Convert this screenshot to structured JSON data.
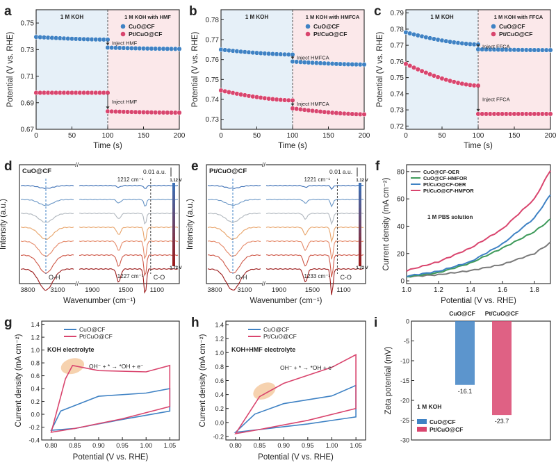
{
  "colors": {
    "blue": "#3f82c4",
    "pink": "#d9456e",
    "green": "#3e9a5a",
    "gray": "#7a7a7a",
    "bgBlue": "#e6f0f8",
    "bgPink": "#fbe8ea",
    "ftirBlueTop": "#3c6fb5",
    "ftirRedBottom": "#9c1c1c"
  },
  "panels": {
    "a": {
      "letter": "a",
      "ylabel": "Potential (V vs. RHE)",
      "xlabel": "Time (s)",
      "region1": "1 M KOH",
      "region2": "1 M KOH with HMF",
      "inject1": "Inject HMF",
      "inject2": "Inject HMF",
      "legend": [
        "CuO@CF",
        "Pt/CuO@CF"
      ]
    },
    "b": {
      "letter": "b",
      "ylabel": "Potential (V vs. RHE)",
      "xlabel": "Time (s)",
      "region1": "1 M KOH",
      "region2": "1 M KOH with HMFCA",
      "inject1": "Inject HMFCA",
      "inject2": "Inject HMFCA",
      "legend": [
        "CuO@CF",
        "Pt/CuO@CF"
      ]
    },
    "c": {
      "letter": "c",
      "ylabel": "Potential (V vs. RHE)",
      "xlabel": "Time (s)",
      "region1": "1 M KOH",
      "region2": "1 M KOH with FFCA",
      "inject1": "Inject FFCA",
      "inject2": "Inject FFCA",
      "legend": [
        "CuO@CF",
        "Pt/CuO@CF"
      ]
    },
    "d": {
      "letter": "d",
      "sample": "CuO@CF",
      "ylabel": "Intensity (a.u.)",
      "xlabel": "Wavenumber (cm⁻¹)",
      "scale": "0.01 a.u.",
      "peak1": "1212 cm⁻¹",
      "peak2": "1227 cm⁻¹",
      "oh": "O-H",
      "co": "C-O",
      "vTop": "1.12 V",
      "vBottom": "1.72 V",
      "xticks": [
        "3800",
        "3100",
        "1900",
        "1500",
        "1100"
      ]
    },
    "e": {
      "letter": "e",
      "sample": "Pt/CuO@CF",
      "ylabel": "Intensity (a.u.)",
      "xlabel": "Wavenumber (cm⁻¹)",
      "scale": "0.01 a.u.",
      "peak1": "1221 cm⁻¹",
      "peak2": "1233 cm⁻¹",
      "oh": "O-H",
      "co": "C-O",
      "vTop": "1.12 V",
      "vBottom": "1.72 V",
      "xticks": [
        "3800",
        "3100",
        "1900",
        "1500",
        "1100"
      ]
    },
    "f": {
      "letter": "f",
      "ylabel": "Current density (mA cm⁻²)",
      "xlabel": "Potential (V vs. RHE)",
      "note": "1 M PBS solution",
      "legend": [
        "CuO@CF-OER",
        "CuO@CF-HMFOR",
        "Pt/CuO@CF-OER",
        "Pt/CuO@CF-HMFOR"
      ]
    },
    "g": {
      "letter": "g",
      "ylabel": "Current density (mA cm⁻²)",
      "xlabel": "Potential (V vs. RHE)",
      "note": "KOH electrolyte",
      "reaction": "OH⁻ + * → *OH + e⁻",
      "legend": [
        "CuO@CF",
        "Pt/CuO@CF"
      ]
    },
    "h": {
      "letter": "h",
      "ylabel": "Current density (mA cm⁻²)",
      "xlabel": "Potential (V vs. RHE)",
      "note": "KOH+HMF electrolyte",
      "reaction": "OH⁻ + * → *OH + e⁻",
      "legend": [
        "CuO@CF",
        "Pt/CuO@CF"
      ]
    },
    "i": {
      "letter": "i",
      "ylabel": "Zeta potential (mV)",
      "note": "1 M KOH",
      "legend": [
        "CuO@CF",
        "Pt/CuO@CF"
      ],
      "topLabels": [
        "CuO@CF",
        "Pt/CuO@CF"
      ]
    }
  },
  "chart_data": [
    {
      "panel": "a",
      "type": "scatter",
      "title": "",
      "xlabel": "Time (s)",
      "ylabel": "Potential (V vs. RHE)",
      "xlim": [
        0,
        200
      ],
      "ylim": [
        0.67,
        0.76
      ],
      "xticks": [
        0,
        50,
        100,
        150,
        200
      ],
      "yticks": [
        0.67,
        0.69,
        0.71,
        0.73,
        0.75
      ],
      "series": [
        {
          "name": "CuO@CF",
          "values": [
            [
              0,
              0.7395
            ],
            [
              100,
              0.7375
            ],
            [
              100,
              0.7315
            ],
            [
              200,
              0.7305
            ]
          ]
        },
        {
          "name": "Pt/CuO@CF",
          "values": [
            [
              0,
              0.6975
            ],
            [
              100,
              0.6975
            ],
            [
              100,
              0.6835
            ],
            [
              200,
              0.6825
            ]
          ]
        }
      ]
    },
    {
      "panel": "b",
      "type": "scatter",
      "title": "",
      "xlabel": "Time (s)",
      "ylabel": "Potential (V vs. RHE)",
      "xlim": [
        0,
        200
      ],
      "ylim": [
        0.725,
        0.785
      ],
      "xticks": [
        0,
        50,
        100,
        150,
        200
      ],
      "yticks": [
        0.73,
        0.74,
        0.75,
        0.76,
        0.77,
        0.78
      ],
      "series": [
        {
          "name": "CuO@CF",
          "values": [
            [
              0,
              0.765
            ],
            [
              100,
              0.7625
            ],
            [
              100,
              0.759
            ],
            [
              200,
              0.7575
            ]
          ]
        },
        {
          "name": "Pt/CuO@CF",
          "values": [
            [
              0,
              0.7445
            ],
            [
              100,
              0.7395
            ],
            [
              100,
              0.7355
            ],
            [
              200,
              0.7325
            ]
          ]
        }
      ]
    },
    {
      "panel": "c",
      "type": "scatter",
      "title": "",
      "xlabel": "Time (s)",
      "ylabel": "Potential (V vs. RHE)",
      "xlim": [
        0,
        200
      ],
      "ylim": [
        0.718,
        0.792
      ],
      "xticks": [
        0,
        50,
        100,
        150,
        200
      ],
      "yticks": [
        0.72,
        0.73,
        0.74,
        0.75,
        0.76,
        0.77,
        0.78,
        0.79
      ],
      "series": [
        {
          "name": "CuO@CF",
          "values": [
            [
              0,
              0.778
            ],
            [
              100,
              0.7705
            ],
            [
              100,
              0.7675
            ],
            [
              200,
              0.767
            ]
          ]
        },
        {
          "name": "Pt/CuO@CF",
          "values": [
            [
              0,
              0.7585
            ],
            [
              100,
              0.745
            ],
            [
              100,
              0.7275
            ],
            [
              200,
              0.7275
            ]
          ]
        }
      ]
    },
    {
      "panel": "d",
      "type": "line",
      "title": "CuO@CF",
      "xlabel": "Wavenumber (cm⁻¹)",
      "ylabel": "Intensity (a.u.)",
      "potentials": [
        "1.12 V",
        "1.72 V"
      ],
      "curves": 7,
      "peaks": [
        3300,
        1212,
        1227
      ]
    },
    {
      "panel": "e",
      "type": "line",
      "title": "Pt/CuO@CF",
      "xlabel": "Wavenumber (cm⁻¹)",
      "ylabel": "Intensity (a.u.)",
      "potentials": [
        "1.12 V",
        "1.72 V"
      ],
      "curves": 7,
      "peaks": [
        3300,
        1221,
        1233
      ]
    },
    {
      "panel": "f",
      "type": "line",
      "title": "",
      "xlabel": "Potential (V vs. RHE)",
      "ylabel": "Current density (mA cm⁻²)",
      "xlim": [
        1.0,
        1.9
      ],
      "ylim": [
        -2,
        85
      ],
      "xticks": [
        1.0,
        1.2,
        1.4,
        1.6,
        1.8
      ],
      "yticks": [
        0,
        20,
        40,
        60,
        80
      ],
      "series": [
        {
          "name": "CuO@CF-OER",
          "values": [
            [
              1.0,
              3
            ],
            [
              1.2,
              4.5
            ],
            [
              1.4,
              7.5
            ],
            [
              1.6,
              12
            ],
            [
              1.8,
              20
            ],
            [
              1.9,
              28
            ]
          ]
        },
        {
          "name": "CuO@CF-HMFOR",
          "values": [
            [
              1.0,
              3
            ],
            [
              1.2,
              6
            ],
            [
              1.4,
              13
            ],
            [
              1.6,
              24
            ],
            [
              1.8,
              36
            ],
            [
              1.9,
              45
            ]
          ]
        },
        {
          "name": "Pt/CuO@CF-OER",
          "values": [
            [
              1.0,
              3.5
            ],
            [
              1.2,
              7
            ],
            [
              1.4,
              14
            ],
            [
              1.6,
              27
            ],
            [
              1.8,
              46
            ],
            [
              1.9,
              63
            ]
          ]
        },
        {
          "name": "Pt/CuO@CF-HMFOR",
          "values": [
            [
              1.0,
              7.5
            ],
            [
              1.2,
              14
            ],
            [
              1.4,
              24
            ],
            [
              1.6,
              38
            ],
            [
              1.8,
              60
            ],
            [
              1.9,
              81
            ]
          ]
        }
      ]
    },
    {
      "panel": "g",
      "type": "line",
      "title": "",
      "xlabel": "Potential (V vs. RHE)",
      "ylabel": "Current density (mA cm⁻²)",
      "xlim": [
        0.78,
        1.07
      ],
      "ylim": [
        -0.4,
        1.45
      ],
      "xticks": [
        0.8,
        0.85,
        0.9,
        0.95,
        1.0,
        1.05
      ],
      "yticks": [
        -0.4,
        -0.2,
        0.0,
        0.2,
        0.4,
        0.6,
        0.8,
        1.0,
        1.2,
        1.4
      ],
      "series": [
        {
          "name": "CuO@CF",
          "values": [
            [
              0.8,
              -0.25
            ],
            [
              0.82,
              0.05
            ],
            [
              0.9,
              0.28
            ],
            [
              1.0,
              0.33
            ],
            [
              1.05,
              0.4
            ],
            [
              1.05,
              0.05
            ],
            [
              0.95,
              -0.08
            ],
            [
              0.85,
              -0.22
            ],
            [
              0.8,
              -0.25
            ]
          ]
        },
        {
          "name": "Pt/CuO@CF",
          "values": [
            [
              0.8,
              -0.28
            ],
            [
              0.83,
              0.55
            ],
            [
              0.845,
              0.76
            ],
            [
              0.9,
              0.68
            ],
            [
              1.0,
              0.66
            ],
            [
              1.05,
              0.76
            ],
            [
              1.05,
              0.12
            ],
            [
              0.95,
              -0.07
            ],
            [
              0.85,
              -0.22
            ],
            [
              0.8,
              -0.28
            ]
          ]
        }
      ]
    },
    {
      "panel": "h",
      "type": "line",
      "title": "",
      "xlabel": "Potential (V vs. RHE)",
      "ylabel": "Current density (mA cm⁻²)",
      "xlim": [
        0.78,
        1.07
      ],
      "ylim": [
        -0.25,
        1.45
      ],
      "xticks": [
        0.8,
        0.85,
        0.9,
        0.95,
        1.0,
        1.05
      ],
      "yticks": [
        -0.2,
        0.0,
        0.2,
        0.4,
        0.6,
        0.8,
        1.0,
        1.2,
        1.4
      ],
      "series": [
        {
          "name": "CuO@CF",
          "values": [
            [
              0.8,
              -0.14
            ],
            [
              0.84,
              0.12
            ],
            [
              0.9,
              0.27
            ],
            [
              1.0,
              0.38
            ],
            [
              1.05,
              0.53
            ],
            [
              1.05,
              0.08
            ],
            [
              0.95,
              -0.02
            ],
            [
              0.85,
              -0.1
            ],
            [
              0.8,
              -0.14
            ]
          ]
        },
        {
          "name": "Pt/CuO@CF",
          "values": [
            [
              0.8,
              -0.16
            ],
            [
              0.85,
              0.37
            ],
            [
              0.9,
              0.56
            ],
            [
              1.0,
              0.79
            ],
            [
              1.05,
              0.97
            ],
            [
              1.05,
              0.2
            ],
            [
              0.95,
              0.03
            ],
            [
              0.85,
              -0.1
            ],
            [
              0.8,
              -0.16
            ]
          ]
        }
      ]
    },
    {
      "panel": "i",
      "type": "bar",
      "title": "",
      "xlabel": "",
      "ylabel": "Zeta potential (mV)",
      "ylim": [
        -30,
        0
      ],
      "yticks": [
        0,
        -5,
        -10,
        -15,
        -20,
        -25,
        -30
      ],
      "categories": [
        "CuO@CF",
        "Pt/CuO@CF"
      ],
      "values": [
        -16.1,
        -23.7
      ],
      "value_labels": [
        "-16.1",
        "-23.7"
      ]
    }
  ]
}
